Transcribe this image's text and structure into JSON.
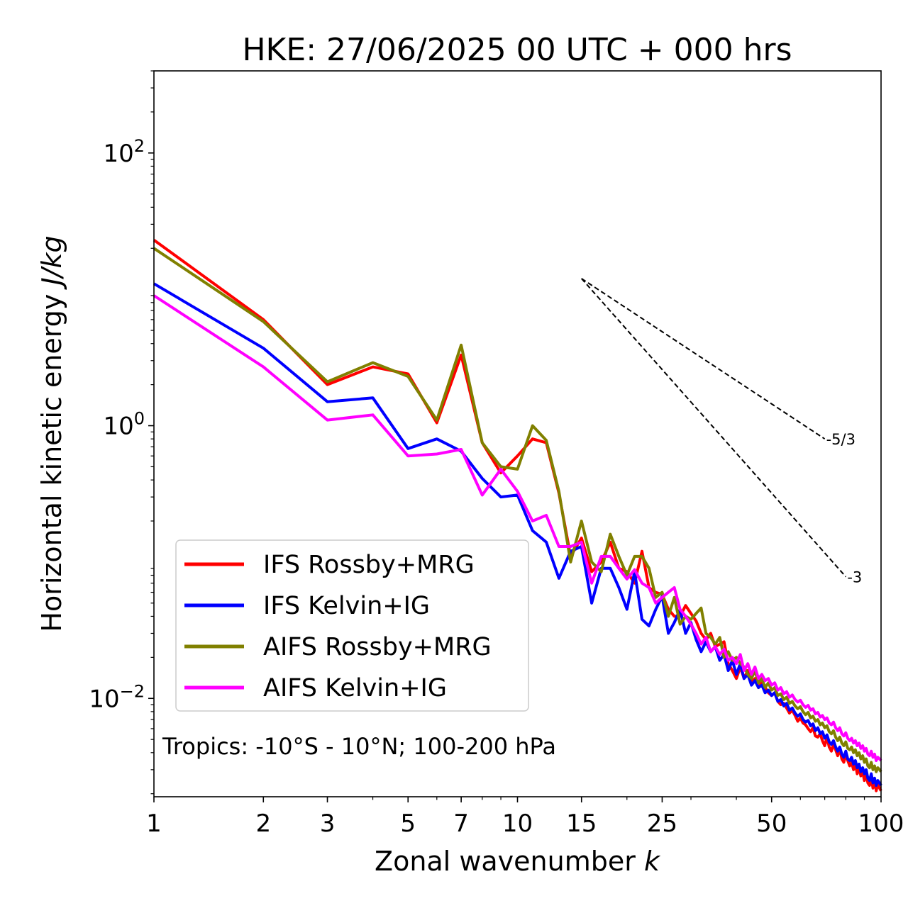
{
  "chart_data": {
    "type": "line",
    "title": "HKE: 27/06/2025 00 UTC + 000 hrs",
    "xlabel_main": "Zonal wavenumber ",
    "xlabel_var": "k",
    "ylabel_main": "Horizontal kinetic energy ",
    "ylabel_unit": "J/kg",
    "x_scale": "log",
    "y_scale": "log",
    "xlim": [
      1,
      100
    ],
    "ylim": [
      0.0019,
      400
    ],
    "x_ticks": [
      1,
      2,
      3,
      5,
      7,
      10,
      15,
      25,
      50,
      100
    ],
    "x_tick_labels": [
      "1",
      "2",
      "3",
      "5",
      "7",
      "10",
      "15",
      "25",
      "50",
      "100"
    ],
    "y_ticks": [
      0.01,
      1,
      100
    ],
    "y_tick_base": "10",
    "y_tick_exponents": [
      "−2",
      "0",
      "2"
    ],
    "legend_placement": "lower-left",
    "annotation": "Tropics: -10°S - 10°N; 100-200 hPa",
    "reference_slopes": [
      {
        "label": "-5/3",
        "x": [
          15,
          70
        ],
        "y": [
          12.0,
          0.8
        ]
      },
      {
        "label": "-3",
        "x": [
          15,
          80
        ],
        "y": [
          12.0,
          0.078
        ]
      }
    ],
    "series": [
      {
        "name": "IFS Rossby+MRG",
        "color": "#ff0000",
        "x": [
          1,
          2,
          3,
          4,
          5,
          6,
          7,
          8,
          9,
          10,
          11,
          12,
          13,
          14,
          15,
          16,
          17,
          18,
          19,
          20,
          21,
          22,
          23,
          24,
          25,
          26,
          27,
          28,
          29,
          30,
          31,
          32,
          33,
          34,
          35,
          36,
          37,
          38,
          39,
          40,
          41,
          42,
          43,
          44,
          45,
          46,
          47,
          48,
          49,
          50,
          51,
          52,
          53,
          54,
          55,
          56,
          57,
          58,
          59,
          60,
          61,
          62,
          63,
          64,
          65,
          66,
          67,
          68,
          69,
          70,
          71,
          72,
          73,
          74,
          75,
          76,
          77,
          78,
          79,
          80,
          81,
          82,
          83,
          84,
          85,
          86,
          87,
          88,
          89,
          90,
          91,
          92,
          93,
          94,
          95,
          96,
          97,
          98,
          99,
          100
        ],
        "values": [
          23,
          6.0,
          2.0,
          2.7,
          2.4,
          1.05,
          3.3,
          0.75,
          0.45,
          0.6,
          0.8,
          0.75,
          0.32,
          0.11,
          0.15,
          0.085,
          0.1,
          0.14,
          0.09,
          0.085,
          0.07,
          0.12,
          0.065,
          0.06,
          0.058,
          0.045,
          0.04,
          0.04,
          0.048,
          0.042,
          0.037,
          0.03,
          0.027,
          0.03,
          0.024,
          0.025,
          0.026,
          0.018,
          0.016,
          0.014,
          0.017,
          0.014,
          0.016,
          0.013,
          0.014,
          0.012,
          0.013,
          0.012,
          0.011,
          0.0105,
          0.011,
          0.0095,
          0.009,
          0.0092,
          0.0085,
          0.0078,
          0.0082,
          0.0075,
          0.0068,
          0.0072,
          0.0066,
          0.0064,
          0.006,
          0.0057,
          0.0061,
          0.0053,
          0.0052,
          0.0055,
          0.0049,
          0.0045,
          0.0052,
          0.0044,
          0.0041,
          0.0046,
          0.0042,
          0.0038,
          0.0043,
          0.0036,
          0.0034,
          0.0039,
          0.0035,
          0.0032,
          0.0034,
          0.003,
          0.0033,
          0.0028,
          0.0031,
          0.0027,
          0.0029,
          0.0025,
          0.0028,
          0.0024,
          0.0023,
          0.0026,
          0.0022,
          0.0025,
          0.0021,
          0.0024,
          0.0022,
          0.0021
        ]
      },
      {
        "name": "IFS Kelvin+IG",
        "color": "#0000ff",
        "x": [
          1,
          2,
          3,
          4,
          5,
          6,
          7,
          8,
          9,
          10,
          11,
          12,
          13,
          14,
          15,
          16,
          17,
          18,
          19,
          20,
          21,
          22,
          23,
          24,
          25,
          26,
          27,
          28,
          29,
          30,
          31,
          32,
          33,
          34,
          35,
          36,
          37,
          38,
          39,
          40,
          41,
          42,
          43,
          44,
          45,
          46,
          47,
          48,
          49,
          50,
          51,
          52,
          53,
          54,
          55,
          56,
          57,
          58,
          59,
          60,
          61,
          62,
          63,
          64,
          65,
          66,
          67,
          68,
          69,
          70,
          71,
          72,
          73,
          74,
          75,
          76,
          77,
          78,
          79,
          80,
          81,
          82,
          83,
          84,
          85,
          86,
          87,
          88,
          89,
          90,
          91,
          92,
          93,
          94,
          95,
          96,
          97,
          98,
          99,
          100
        ],
        "values": [
          11,
          3.7,
          1.5,
          1.6,
          0.68,
          0.8,
          0.65,
          0.41,
          0.3,
          0.31,
          0.17,
          0.14,
          0.076,
          0.12,
          0.13,
          0.05,
          0.09,
          0.09,
          0.065,
          0.045,
          0.085,
          0.038,
          0.034,
          0.045,
          0.056,
          0.03,
          0.036,
          0.045,
          0.03,
          0.036,
          0.027,
          0.022,
          0.026,
          0.022,
          0.024,
          0.019,
          0.021,
          0.016,
          0.019,
          0.015,
          0.018,
          0.014,
          0.015,
          0.0125,
          0.0135,
          0.012,
          0.0125,
          0.011,
          0.0115,
          0.0105,
          0.011,
          0.0095,
          0.0098,
          0.0088,
          0.0092,
          0.0082,
          0.0085,
          0.0078,
          0.0074,
          0.0077,
          0.007,
          0.0067,
          0.0069,
          0.0063,
          0.0065,
          0.0058,
          0.0061,
          0.0055,
          0.0057,
          0.0051,
          0.0054,
          0.0048,
          0.0046,
          0.0049,
          0.0044,
          0.0041,
          0.0044,
          0.0039,
          0.0037,
          0.0041,
          0.0036,
          0.0035,
          0.0037,
          0.0033,
          0.0035,
          0.0031,
          0.0033,
          0.0029,
          0.0031,
          0.0028,
          0.003,
          0.0026,
          0.0025,
          0.0028,
          0.0024,
          0.0026,
          0.0023,
          0.0025,
          0.0024,
          0.0023
        ]
      },
      {
        "name": "AIFS Rossby+MRG",
        "color": "#808000",
        "x": [
          1,
          2,
          3,
          4,
          5,
          6,
          7,
          8,
          9,
          10,
          11,
          12,
          13,
          14,
          15,
          16,
          17,
          18,
          19,
          20,
          21,
          22,
          23,
          24,
          25,
          26,
          27,
          28,
          29,
          30,
          31,
          32,
          33,
          34,
          35,
          36,
          37,
          38,
          39,
          40,
          41,
          42,
          43,
          44,
          45,
          46,
          47,
          48,
          49,
          50,
          51,
          52,
          53,
          54,
          55,
          56,
          57,
          58,
          59,
          60,
          61,
          62,
          63,
          64,
          65,
          66,
          67,
          68,
          69,
          70,
          71,
          72,
          73,
          74,
          75,
          76,
          77,
          78,
          79,
          80,
          81,
          82,
          83,
          84,
          85,
          86,
          87,
          88,
          89,
          90,
          91,
          92,
          93,
          94,
          95,
          96,
          97,
          98,
          99,
          100
        ],
        "values": [
          20,
          5.8,
          2.1,
          2.9,
          2.3,
          1.1,
          3.9,
          0.75,
          0.5,
          0.48,
          1.0,
          0.78,
          0.33,
          0.1,
          0.2,
          0.1,
          0.085,
          0.16,
          0.11,
          0.08,
          0.11,
          0.11,
          0.09,
          0.055,
          0.06,
          0.04,
          0.055,
          0.035,
          0.04,
          0.038,
          0.042,
          0.046,
          0.03,
          0.028,
          0.025,
          0.028,
          0.02,
          0.022,
          0.019,
          0.02,
          0.018,
          0.017,
          0.015,
          0.014,
          0.016,
          0.013,
          0.014,
          0.012,
          0.013,
          0.0115,
          0.012,
          0.0105,
          0.0108,
          0.0098,
          0.0102,
          0.0092,
          0.0095,
          0.0088,
          0.0084,
          0.0087,
          0.008,
          0.0076,
          0.0079,
          0.0072,
          0.0074,
          0.0068,
          0.007,
          0.0064,
          0.0066,
          0.0061,
          0.0063,
          0.0057,
          0.0055,
          0.0058,
          0.0052,
          0.0049,
          0.0052,
          0.0047,
          0.0045,
          0.0048,
          0.0043,
          0.0042,
          0.0044,
          0.004,
          0.0042,
          0.0038,
          0.004,
          0.0036,
          0.0038,
          0.0034,
          0.0036,
          0.0032,
          0.0031,
          0.0034,
          0.003,
          0.0032,
          0.0029,
          0.0031,
          0.003,
          0.0029
        ]
      },
      {
        "name": "AIFS Kelvin+IG",
        "color": "#ff00ff",
        "x": [
          1,
          2,
          3,
          4,
          5,
          6,
          7,
          8,
          9,
          10,
          11,
          12,
          13,
          14,
          15,
          16,
          17,
          18,
          19,
          20,
          21,
          22,
          23,
          24,
          25,
          26,
          27,
          28,
          29,
          30,
          31,
          32,
          33,
          34,
          35,
          36,
          37,
          38,
          39,
          40,
          41,
          42,
          43,
          44,
          45,
          46,
          47,
          48,
          49,
          50,
          51,
          52,
          53,
          54,
          55,
          56,
          57,
          58,
          59,
          60,
          61,
          62,
          63,
          64,
          65,
          66,
          67,
          68,
          69,
          70,
          71,
          72,
          73,
          74,
          75,
          76,
          77,
          78,
          79,
          80,
          81,
          82,
          83,
          84,
          85,
          86,
          87,
          88,
          89,
          90,
          91,
          92,
          93,
          94,
          95,
          96,
          97,
          98,
          99,
          100
        ],
        "values": [
          9.0,
          2.7,
          1.1,
          1.2,
          0.6,
          0.62,
          0.67,
          0.31,
          0.48,
          0.33,
          0.2,
          0.22,
          0.13,
          0.13,
          0.14,
          0.07,
          0.11,
          0.11,
          0.09,
          0.075,
          0.088,
          0.07,
          0.065,
          0.05,
          0.055,
          0.06,
          0.065,
          0.045,
          0.04,
          0.035,
          0.03,
          0.025,
          0.028,
          0.022,
          0.024,
          0.021,
          0.023,
          0.019,
          0.02,
          0.018,
          0.021,
          0.016,
          0.018,
          0.015,
          0.017,
          0.014,
          0.015,
          0.0135,
          0.014,
          0.0125,
          0.013,
          0.0115,
          0.012,
          0.0108,
          0.0112,
          0.0102,
          0.0106,
          0.0098,
          0.0094,
          0.0097,
          0.009,
          0.0086,
          0.0089,
          0.0082,
          0.0084,
          0.0077,
          0.0079,
          0.0073,
          0.0075,
          0.007,
          0.0072,
          0.0066,
          0.0064,
          0.0067,
          0.0061,
          0.0058,
          0.0061,
          0.0055,
          0.0053,
          0.0056,
          0.0051,
          0.0049,
          0.0051,
          0.0047,
          0.0049,
          0.0045,
          0.0047,
          0.0043,
          0.0045,
          0.0041,
          0.0043,
          0.0039,
          0.0038,
          0.0041,
          0.0037,
          0.0039,
          0.0035,
          0.0037,
          0.0036,
          0.0035
        ]
      }
    ]
  }
}
